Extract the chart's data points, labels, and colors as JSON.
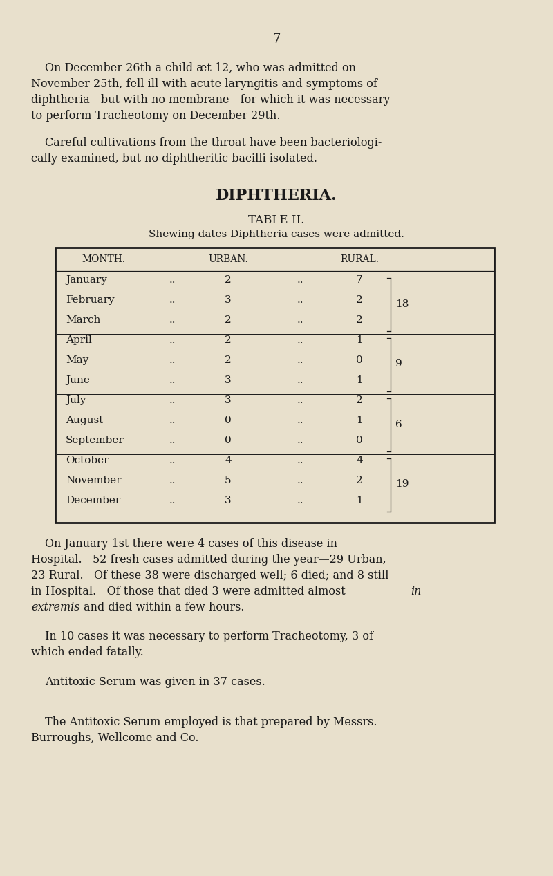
{
  "bg_color": "#e8e0cc",
  "text_color": "#1a1a1a",
  "page_number": "7",
  "para1_lines": [
    "On December 26th a child æt 12, who was admitted on",
    "November 25th, fell ill with acute laryngitis and symptoms of",
    "diphtheria—but with no membrane—for which it was necessary",
    "to perform Tracheotomy on December 29th."
  ],
  "para2_lines": [
    "Careful cultivations from the throat have been bacteriologi-",
    "cally examined, but no diphtheritic bacilli isolated."
  ],
  "section_title": "DIPHTHERIA.",
  "table_title": "TABLE II.",
  "table_subtitle": "Shewing dates Diphtheria cases were admitted.",
  "col_headers": [
    "MONTH.",
    "URBAN.",
    "RURAL."
  ],
  "table_data": [
    [
      "January",
      2,
      7
    ],
    [
      "February",
      3,
      2
    ],
    [
      "March",
      2,
      2
    ],
    [
      "April",
      2,
      1
    ],
    [
      "May",
      2,
      0
    ],
    [
      "June",
      3,
      1
    ],
    [
      "July",
      3,
      2
    ],
    [
      "August",
      0,
      1
    ],
    [
      "September",
      0,
      0
    ],
    [
      "October",
      4,
      4
    ],
    [
      "November",
      5,
      2
    ],
    [
      "December",
      3,
      1
    ]
  ],
  "group_separators_after": [
    2,
    5,
    8
  ],
  "group_totals": [
    {
      "rows": [
        0,
        1,
        2
      ],
      "total": 18
    },
    {
      "rows": [
        3,
        4,
        5
      ],
      "total": 9
    },
    {
      "rows": [
        6,
        7,
        8
      ],
      "total": 6
    },
    {
      "rows": [
        9,
        10,
        11
      ],
      "total": 19
    }
  ],
  "post_para3_lines": [
    "On January 1st there were 4 cases of this disease in",
    "Hospital.   52 fresh cases admitted during the year—29 Urban,",
    "23 Rural.   Of these 38 were discharged well; 6 died; and 8 still",
    "in Hospital.   Of those that died 3 were admitted almost "
  ],
  "post_para3_italic_end": "in",
  "post_para3_line5_italic": "extremis",
  "post_para3_line5_rest": " and died within a few hours.",
  "para4_line1": "In 10 cases it was necessary to perform Tracheotomy, 3 of",
  "para4_line2": "which ended fatally.",
  "para5": "Antitoxic Serum was given in 37 cases.",
  "para6_line1": "The Antitoxic Serum employed is that prepared by Messrs.",
  "para6_line2": "Burroughs, Wellcome and Co."
}
